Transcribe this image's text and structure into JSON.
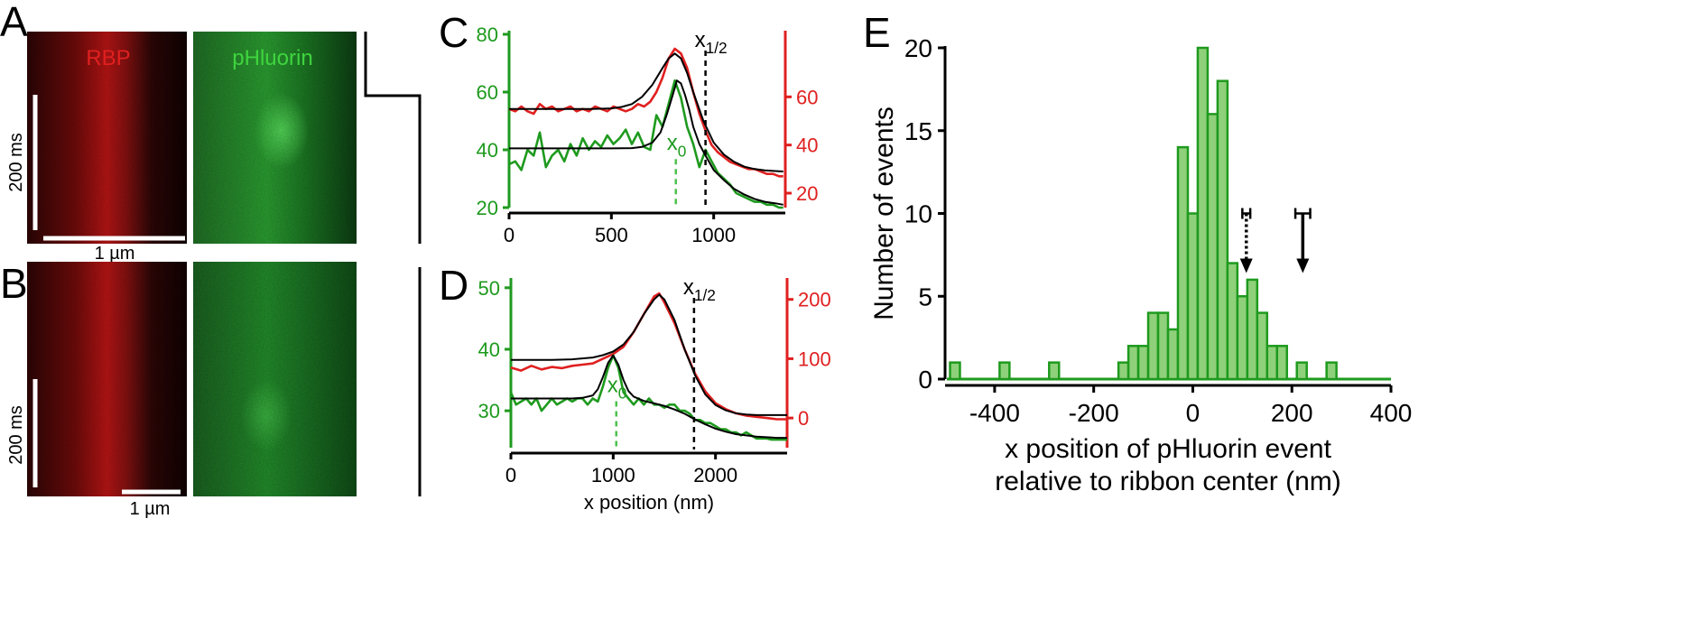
{
  "colors": {
    "red": "#e02020",
    "green": "#1e9a1e",
    "light_green": "#8fd07a",
    "black": "#000000",
    "dashed_green": "#4cc24c"
  },
  "panel_letters": {
    "a": "A",
    "b": "B",
    "c": "C",
    "d": "D",
    "e": "E"
  },
  "panel_ab": {
    "rbp_label": "RBP",
    "phluorin_label": "pHluorin",
    "time_scale_label": "200 ms",
    "space_scale_label": "1 µm"
  },
  "chart_data": [
    {
      "id": "C",
      "type": "line",
      "xlim": [
        0,
        1350
      ],
      "x_ticks": [
        "0",
        "500",
        "1000"
      ],
      "left_axis": {
        "ylim": [
          20,
          80
        ],
        "ticks": [
          "20",
          "40",
          "60",
          "80"
        ],
        "color": "green"
      },
      "right_axis": {
        "ylim": [
          14,
          86
        ],
        "ticks": [
          "20",
          "40",
          "60"
        ],
        "color": "red"
      },
      "annotations": {
        "x_half": "x1/2",
        "x_half_value": 960,
        "x0": "x0",
        "x0_value": 815
      },
      "series": [
        {
          "axis": "right",
          "color": "red",
          "kind": "data",
          "x": [
            0,
            30,
            60,
            90,
            120,
            150,
            180,
            210,
            240,
            270,
            300,
            330,
            360,
            390,
            420,
            450,
            480,
            510,
            540,
            570,
            600,
            630,
            660,
            690,
            720,
            750,
            780,
            810,
            840,
            870,
            900,
            930,
            960,
            990,
            1020,
            1050,
            1080,
            1110,
            1140,
            1170,
            1200,
            1230,
            1260,
            1290,
            1320,
            1340
          ],
          "y": [
            55,
            54,
            56,
            54,
            53,
            57,
            55,
            56,
            54,
            55,
            56,
            54,
            55,
            54,
            56,
            55,
            54,
            56,
            55,
            54,
            55,
            57,
            56,
            58,
            62,
            68,
            76,
            80,
            78,
            72,
            62,
            53,
            46,
            40,
            37,
            35,
            33,
            32,
            31,
            30,
            30,
            29,
            28,
            28,
            27,
            27
          ]
        },
        {
          "axis": "right",
          "color": "black",
          "kind": "fit",
          "x": [
            0,
            100,
            200,
            300,
            400,
            500,
            550,
            600,
            650,
            700,
            750,
            780,
            810,
            840,
            870,
            900,
            950,
            1000,
            1050,
            1100,
            1150,
            1200,
            1250,
            1300,
            1340
          ],
          "y": [
            55,
            55,
            55,
            55,
            55,
            55.2,
            55.8,
            57,
            60,
            65,
            72,
            76,
            78,
            76,
            70,
            62,
            50,
            41,
            36,
            33,
            31,
            30,
            29.5,
            29.2,
            29
          ]
        },
        {
          "axis": "left",
          "color": "green",
          "kind": "data",
          "x": [
            0,
            30,
            60,
            90,
            120,
            150,
            180,
            210,
            240,
            270,
            300,
            330,
            360,
            390,
            420,
            450,
            480,
            510,
            540,
            570,
            600,
            630,
            660,
            690,
            720,
            750,
            780,
            810,
            840,
            870,
            900,
            930,
            960,
            990,
            1020,
            1050,
            1080,
            1110,
            1140,
            1170,
            1200,
            1230,
            1260,
            1290,
            1320,
            1340
          ],
          "y": [
            35,
            36,
            33,
            40,
            38,
            46,
            34,
            38,
            40,
            36,
            42,
            38,
            44,
            40,
            43,
            41,
            45,
            42,
            44,
            47,
            42,
            46,
            41,
            40,
            52,
            48,
            56,
            64,
            58,
            48,
            42,
            34,
            40,
            36,
            32,
            30,
            28,
            25,
            24,
            23,
            22,
            22,
            21,
            21,
            20,
            20
          ]
        },
        {
          "axis": "left",
          "color": "black",
          "kind": "fit",
          "x": [
            0,
            100,
            200,
            300,
            400,
            500,
            600,
            650,
            700,
            740,
            770,
            800,
            820,
            840,
            860,
            880,
            900,
            930,
            960,
            1000,
            1050,
            1100,
            1150,
            1200,
            1250,
            1300,
            1340
          ],
          "y": [
            40.5,
            40.5,
            40.5,
            40.5,
            40.5,
            40.5,
            40.6,
            41,
            42.5,
            46,
            52,
            59,
            64,
            63,
            59,
            54,
            48,
            42,
            38,
            33,
            29.5,
            26.5,
            24.5,
            23,
            22,
            21.5,
            21
          ]
        }
      ]
    },
    {
      "id": "D",
      "type": "line",
      "xlim": [
        0,
        2700
      ],
      "x_ticks": [
        "0",
        "1000",
        "2000"
      ],
      "xlabel": "x position (nm)",
      "left_axis": {
        "ylim": [
          24,
          51
        ],
        "ticks": [
          "30",
          "40",
          "50"
        ],
        "color": "green"
      },
      "right_axis": {
        "ylim": [
          -50,
          230
        ],
        "ticks": [
          "0",
          "100",
          "200"
        ],
        "color": "red"
      },
      "annotations": {
        "x_half": "x1/2",
        "x_half_value": 1790,
        "x0": "x0",
        "x0_value": 1030
      },
      "series": [
        {
          "axis": "right",
          "color": "red",
          "kind": "data",
          "x": [
            0,
            100,
            200,
            300,
            400,
            500,
            600,
            700,
            800,
            900,
            1000,
            1100,
            1200,
            1300,
            1400,
            1450,
            1500,
            1600,
            1700,
            1800,
            1900,
            2000,
            2100,
            2200,
            2300,
            2400,
            2500,
            2600,
            2700
          ],
          "y": [
            85,
            80,
            88,
            82,
            86,
            84,
            88,
            90,
            92,
            100,
            108,
            120,
            145,
            175,
            205,
            210,
            195,
            160,
            115,
            75,
            45,
            25,
            15,
            8,
            4,
            2,
            0,
            -2,
            -2
          ]
        },
        {
          "axis": "right",
          "color": "black",
          "kind": "fit",
          "x": [
            0,
            200,
            400,
            600,
            800,
            900,
            1000,
            1100,
            1200,
            1300,
            1400,
            1450,
            1500,
            1600,
            1700,
            1800,
            1900,
            2000,
            2100,
            2200,
            2300,
            2400,
            2500,
            2600,
            2700
          ],
          "y": [
            98,
            98,
            98,
            99,
            102,
            106,
            112,
            124,
            145,
            175,
            200,
            208,
            200,
            165,
            115,
            72,
            40,
            22,
            13,
            8,
            6,
            5,
            5,
            5,
            5
          ]
        },
        {
          "axis": "left",
          "color": "green",
          "kind": "data",
          "x": [
            0,
            50,
            100,
            150,
            200,
            250,
            300,
            350,
            400,
            450,
            500,
            550,
            600,
            650,
            700,
            750,
            800,
            850,
            900,
            950,
            1000,
            1050,
            1100,
            1150,
            1200,
            1250,
            1300,
            1350,
            1400,
            1450,
            1500,
            1550,
            1600,
            1650,
            1700,
            1750,
            1800,
            1850,
            1900,
            1950,
            2000,
            2050,
            2100,
            2150,
            2200,
            2250,
            2300,
            2350,
            2400,
            2450,
            2500,
            2550,
            2600,
            2650,
            2700
          ],
          "y": [
            33,
            31,
            31.5,
            32,
            31,
            32,
            30,
            31,
            32,
            31,
            31.5,
            32,
            31.5,
            32,
            32,
            31,
            32,
            31.5,
            34,
            37,
            39,
            37,
            33,
            32,
            31,
            32,
            31,
            32,
            31,
            31,
            30.5,
            31,
            31,
            30,
            30,
            29.5,
            28.5,
            28.5,
            28,
            28,
            27.5,
            27,
            27,
            26.5,
            26.5,
            26,
            26.5,
            26,
            25.5,
            25.5,
            25.5,
            25.3,
            25.3,
            25.3,
            25.3
          ]
        },
        {
          "axis": "left",
          "color": "black",
          "kind": "fit",
          "x": [
            0,
            200,
            400,
            600,
            700,
            800,
            850,
            900,
            950,
            1000,
            1050,
            1100,
            1150,
            1200,
            1300,
            1400,
            1500,
            1600,
            1700,
            1800,
            1900,
            2000,
            2100,
            2200,
            2300,
            2400,
            2500,
            2600,
            2700
          ],
          "y": [
            32,
            32,
            32,
            32,
            32.1,
            32.5,
            33.5,
            35.5,
            37.8,
            39,
            37.5,
            35,
            33.2,
            32.3,
            31.6,
            31.2,
            30.8,
            30.2,
            29.5,
            28.6,
            27.8,
            27.1,
            26.6,
            26.2,
            26,
            25.8,
            25.7,
            25.6,
            25.6
          ]
        }
      ]
    },
    {
      "id": "E",
      "type": "bar",
      "xlabel_line1": "x position of pHluorin event",
      "xlabel_line2": "relative to ribbon center (nm)",
      "ylabel": "Number of events",
      "xlim": [
        -500,
        400
      ],
      "ylim": [
        0,
        20
      ],
      "x_ticks": [
        -400,
        -200,
        0,
        200,
        400
      ],
      "x_tick_labels": [
        "-400",
        "-200",
        "0",
        "200",
        "400"
      ],
      "y_ticks": [
        0,
        5,
        10,
        15,
        20
      ],
      "y_tick_labels": [
        "0",
        "5",
        "10",
        "15",
        "20"
      ],
      "bin_width": 20,
      "bins": [
        {
          "x": -480,
          "count": 1
        },
        {
          "x": -380,
          "count": 1
        },
        {
          "x": -280,
          "count": 1
        },
        {
          "x": -140,
          "count": 1
        },
        {
          "x": -120,
          "count": 2
        },
        {
          "x": -100,
          "count": 2
        },
        {
          "x": -80,
          "count": 4
        },
        {
          "x": -60,
          "count": 4
        },
        {
          "x": -40,
          "count": 3
        },
        {
          "x": -20,
          "count": 14
        },
        {
          "x": 0,
          "count": 10
        },
        {
          "x": 20,
          "count": 20
        },
        {
          "x": 40,
          "count": 16
        },
        {
          "x": 60,
          "count": 18
        },
        {
          "x": 80,
          "count": 7
        },
        {
          "x": 100,
          "count": 5
        },
        {
          "x": 120,
          "count": 6
        },
        {
          "x": 140,
          "count": 4
        },
        {
          "x": 160,
          "count": 2
        },
        {
          "x": 180,
          "count": 2
        },
        {
          "x": 220,
          "count": 1
        },
        {
          "x": 280,
          "count": 1
        }
      ],
      "markers": [
        {
          "name": "dotted-arrow",
          "x": 108,
          "error": 8,
          "style": "dotted"
        },
        {
          "name": "solid-arrow",
          "x": 222,
          "error": 15,
          "style": "solid"
        }
      ]
    }
  ]
}
